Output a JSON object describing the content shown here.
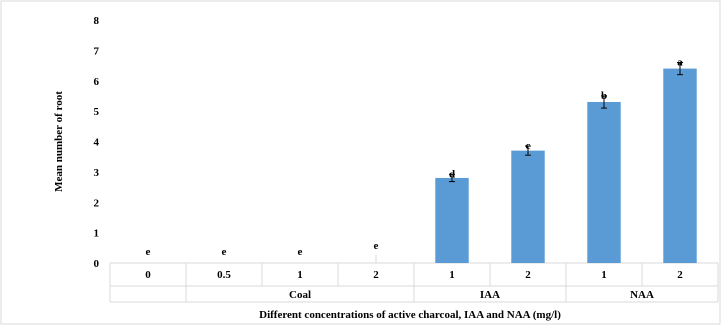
{
  "chart_data": {
    "type": "bar",
    "xlabel": "Different concentrations  of active charcoal, IAA and NAA (mg/l)",
    "ylabel": "Mean number  of root",
    "ylim": [
      0,
      8
    ],
    "yticks": [
      "0",
      "1",
      "2",
      "3",
      "4",
      "5",
      "6",
      "7",
      "8"
    ],
    "grid": false,
    "categories": [
      "0",
      "0.5",
      "1",
      "2",
      "1",
      "2",
      "1",
      "2"
    ],
    "groups": [
      {
        "label": "Coal",
        "start": 1,
        "end": 3
      },
      {
        "label": "IAA",
        "start": 4,
        "end": 5
      },
      {
        "label": "NAA",
        "start": 6,
        "end": 7
      }
    ],
    "values": [
      0,
      0,
      0,
      0,
      2.8,
      3.7,
      5.3,
      6.4
    ],
    "errors": [
      0,
      0,
      0,
      0,
      0.12,
      0.15,
      0.2,
      0.2
    ],
    "significance": [
      "e",
      "e",
      "e",
      "e",
      "d",
      "c",
      "b",
      "a"
    ],
    "colors": {
      "bar": "#5b9bd5",
      "axis": "#d9d9d9",
      "error": "#000000"
    }
  }
}
